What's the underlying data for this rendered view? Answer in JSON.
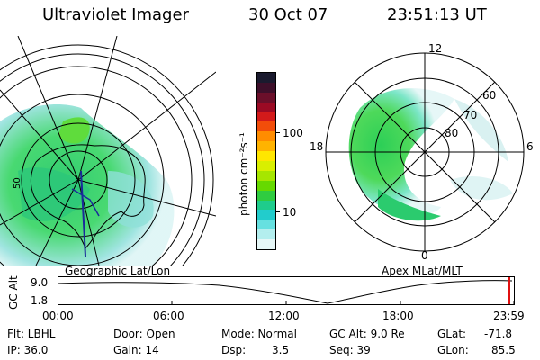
{
  "header": {
    "instrument": "Ultraviolet Imager",
    "date": "30 Oct 07",
    "time": "23:51:13 UT"
  },
  "geo_panel": {
    "label": "Geographic Lat/Lon",
    "lat_label": "50"
  },
  "mag_panel": {
    "label": "Apex MLat/MLT",
    "mlt_labels": [
      "12",
      "18",
      "6",
      "0"
    ],
    "mlat_labels": [
      "60",
      "70",
      "80"
    ]
  },
  "colorbar": {
    "unit_label": "photon cm⁻²s⁻¹",
    "ticks": [
      "100",
      "10"
    ],
    "colors": [
      "#1a1a2e",
      "#3d0f2a",
      "#6b0f2a",
      "#9b0a24",
      "#d31a1a",
      "#f24d0a",
      "#ff8c00",
      "#ffb300",
      "#ffe600",
      "#d9ef00",
      "#a6e600",
      "#66d900",
      "#2fcc40",
      "#1fcc8c",
      "#22cccc",
      "#66e0e0",
      "#b3eeee",
      "#e6f7f7"
    ]
  },
  "timeline": {
    "axis_title": "GC Alt",
    "y_ticks": [
      "9.0",
      "1.8"
    ],
    "x_ticks": [
      "00:00",
      "06:00",
      "12:00",
      "18:00",
      "23:59"
    ]
  },
  "footer": {
    "flt": "Flt: LBHL",
    "ip": "IP: 36.0",
    "door": "Door: Open",
    "gain": "Gain: 14",
    "mode": "Mode: Normal",
    "dsp_label": "Dsp:",
    "dsp_value": "3.5",
    "gc_alt": "GC Alt: 9.0 Re",
    "seq": "Seq: 39",
    "glat_label": "GLat:",
    "glat_value": "-71.8",
    "glon_label": "GLon:",
    "glon_value": "85.5"
  }
}
